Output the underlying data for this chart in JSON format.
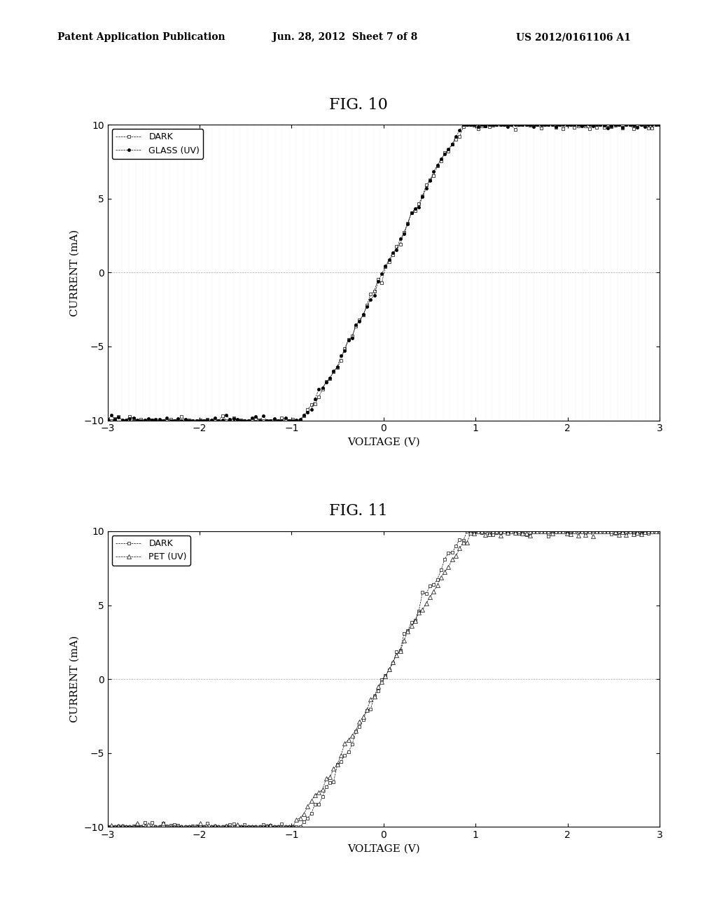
{
  "header_left": "Patent Application Publication",
  "header_center": "Jun. 28, 2012  Sheet 7 of 8",
  "header_right": "US 2012/0161106 A1",
  "fig10_title": "FIG. 10",
  "fig11_title": "FIG. 11",
  "xlabel": "VOLTAGE (V)",
  "ylabel": "CURRENT (mA)",
  "xlim": [
    -3,
    3
  ],
  "ylim": [
    -10,
    10
  ],
  "xticks": [
    -3,
    -2,
    -1,
    0,
    1,
    2,
    3
  ],
  "yticks": [
    -10,
    -5,
    0,
    5,
    10
  ],
  "fig10_legend1": "DARK",
  "fig10_legend2": "GLASS (UV)",
  "fig11_legend1": "DARK",
  "fig11_legend2": "PET (UV)",
  "background_color": "#ffffff",
  "line_color": "#000000",
  "grid_color": "#aaaaaa"
}
